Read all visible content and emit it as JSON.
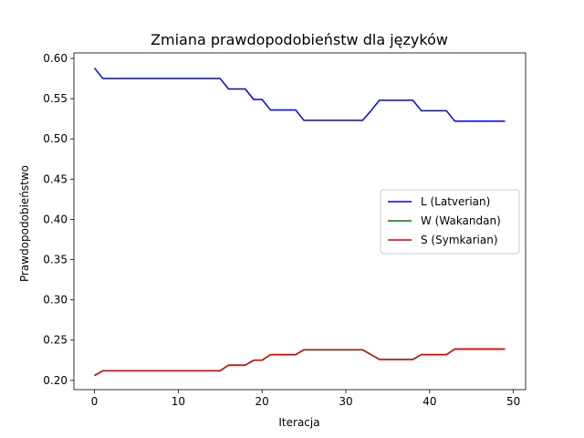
{
  "chart_data": {
    "type": "line",
    "title": "Zmiana prawdopodobieństw dla języków",
    "xlabel": "Iteracja",
    "ylabel": "Prawdopodobieństwo",
    "xlim": [
      -2.45,
      51.45
    ],
    "ylim": [
      0.1885,
      0.6068
    ],
    "xticks": [
      0,
      10,
      20,
      30,
      40,
      50
    ],
    "yticks": [
      0.2,
      0.25,
      0.3,
      0.35,
      0.4,
      0.45,
      0.5,
      0.55,
      0.6
    ],
    "ytick_labels": [
      "0.20",
      "0.25",
      "0.30",
      "0.35",
      "0.40",
      "0.45",
      "0.50",
      "0.55",
      "0.60"
    ],
    "grid": false,
    "legend_placement": "center-right",
    "x": [
      0,
      1,
      2,
      3,
      4,
      5,
      6,
      7,
      8,
      9,
      10,
      11,
      12,
      13,
      14,
      15,
      16,
      17,
      18,
      19,
      20,
      21,
      22,
      23,
      24,
      25,
      26,
      27,
      28,
      29,
      30,
      31,
      32,
      33,
      34,
      35,
      36,
      37,
      38,
      39,
      40,
      41,
      42,
      43,
      44,
      45,
      46,
      47,
      48,
      49
    ],
    "series": [
      {
        "name": "L (Latverian)",
        "color": "#0000ff",
        "values": [
          0.588,
          0.575,
          0.575,
          0.575,
          0.575,
          0.575,
          0.575,
          0.575,
          0.575,
          0.575,
          0.575,
          0.575,
          0.575,
          0.575,
          0.575,
          0.575,
          0.562,
          0.562,
          0.562,
          0.549,
          0.549,
          0.536,
          0.536,
          0.536,
          0.536,
          0.523,
          0.523,
          0.523,
          0.523,
          0.523,
          0.523,
          0.523,
          0.523,
          0.535,
          0.548,
          0.548,
          0.548,
          0.548,
          0.548,
          0.535,
          0.535,
          0.535,
          0.535,
          0.522,
          0.522,
          0.522,
          0.522,
          0.522,
          0.522,
          0.522
        ]
      },
      {
        "name": "W (Wakandan)",
        "color": "#008000",
        "values": [
          0.206,
          0.212,
          0.212,
          0.212,
          0.212,
          0.212,
          0.212,
          0.212,
          0.212,
          0.212,
          0.212,
          0.212,
          0.212,
          0.212,
          0.212,
          0.212,
          0.219,
          0.219,
          0.219,
          0.225,
          0.225,
          0.232,
          0.232,
          0.232,
          0.232,
          0.238,
          0.238,
          0.238,
          0.238,
          0.238,
          0.238,
          0.238,
          0.238,
          0.232,
          0.226,
          0.226,
          0.226,
          0.226,
          0.226,
          0.232,
          0.232,
          0.232,
          0.232,
          0.239,
          0.239,
          0.239,
          0.239,
          0.239,
          0.239,
          0.239
        ]
      },
      {
        "name": "S (Symkarian)",
        "color": "#e00000",
        "values": [
          0.206,
          0.212,
          0.212,
          0.212,
          0.212,
          0.212,
          0.212,
          0.212,
          0.212,
          0.212,
          0.212,
          0.212,
          0.212,
          0.212,
          0.212,
          0.212,
          0.219,
          0.219,
          0.219,
          0.225,
          0.225,
          0.232,
          0.232,
          0.232,
          0.232,
          0.238,
          0.238,
          0.238,
          0.238,
          0.238,
          0.238,
          0.238,
          0.238,
          0.232,
          0.226,
          0.226,
          0.226,
          0.226,
          0.226,
          0.232,
          0.232,
          0.232,
          0.232,
          0.239,
          0.239,
          0.239,
          0.239,
          0.239,
          0.239,
          0.239
        ]
      }
    ]
  }
}
